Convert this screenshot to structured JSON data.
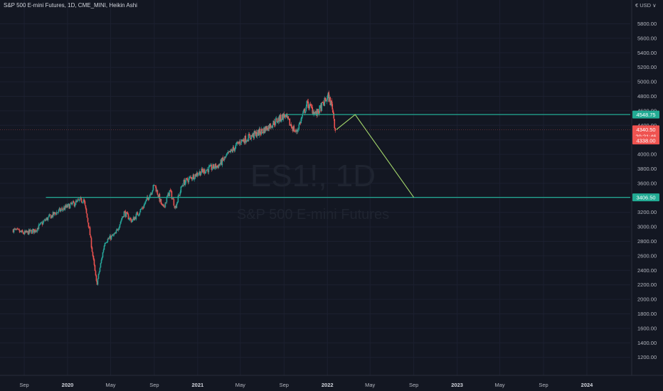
{
  "header": {
    "title": "S&P 500 E-mini Futures, 1D, CME_MINI, Heikin Ashi",
    "currency": "€ USD ∨"
  },
  "watermark": {
    "symbol": "ES1!, 1D",
    "name": "S&P 500 E-mini Futures"
  },
  "colors": {
    "background": "#131722",
    "up": "#26a69a",
    "down": "#ef5350",
    "horizontal_line": "#22ab94",
    "projection": "#a5d86c"
  },
  "chart_data": {
    "type": "candlestick",
    "candle_style": "Heikin Ashi",
    "interval": "1D",
    "ylim": [
      1050,
      6050
    ],
    "y_ticks": [
      1200,
      1400,
      1600,
      1800,
      2000,
      2200,
      2400,
      2600,
      2800,
      3000,
      3200,
      3400,
      3600,
      3800,
      4000,
      4200,
      4400,
      4600,
      4800,
      5000,
      5200,
      5400,
      5600,
      5800
    ],
    "x_ticks": [
      {
        "label": "Sep",
        "date": "2019-09-01",
        "bold": false
      },
      {
        "label": "2020",
        "date": "2020-01-01",
        "bold": true
      },
      {
        "label": "May",
        "date": "2020-05-01",
        "bold": false
      },
      {
        "label": "Sep",
        "date": "2020-09-01",
        "bold": false
      },
      {
        "label": "2021",
        "date": "2021-01-01",
        "bold": true
      },
      {
        "label": "May",
        "date": "2021-05-01",
        "bold": false
      },
      {
        "label": "Sep",
        "date": "2021-09-01",
        "bold": false
      },
      {
        "label": "2022",
        "date": "2022-01-01",
        "bold": true
      },
      {
        "label": "May",
        "date": "2022-05-01",
        "bold": false
      },
      {
        "label": "Sep",
        "date": "2022-09-01",
        "bold": false
      },
      {
        "label": "2023",
        "date": "2023-01-01",
        "bold": true
      },
      {
        "label": "May",
        "date": "2023-05-01",
        "bold": false
      },
      {
        "label": "Sep",
        "date": "2023-09-01",
        "bold": false
      },
      {
        "label": "2024",
        "date": "2024-01-01",
        "bold": true
      }
    ],
    "price_path": [
      {
        "date": "2019-08-01",
        "price": 2960
      },
      {
        "date": "2019-09-01",
        "price": 2910
      },
      {
        "date": "2019-10-01",
        "price": 2950
      },
      {
        "date": "2019-11-01",
        "price": 3100
      },
      {
        "date": "2019-12-01",
        "price": 3200
      },
      {
        "date": "2020-01-01",
        "price": 3280
      },
      {
        "date": "2020-02-15",
        "price": 3380
      },
      {
        "date": "2020-03-01",
        "price": 3000
      },
      {
        "date": "2020-03-23",
        "price": 2200
      },
      {
        "date": "2020-04-15",
        "price": 2800
      },
      {
        "date": "2020-05-15",
        "price": 2900
      },
      {
        "date": "2020-06-08",
        "price": 3200
      },
      {
        "date": "2020-06-30",
        "price": 3080
      },
      {
        "date": "2020-08-01",
        "price": 3280
      },
      {
        "date": "2020-09-02",
        "price": 3580
      },
      {
        "date": "2020-09-25",
        "price": 3250
      },
      {
        "date": "2020-10-15",
        "price": 3500
      },
      {
        "date": "2020-10-30",
        "price": 3270
      },
      {
        "date": "2020-11-20",
        "price": 3600
      },
      {
        "date": "2021-01-01",
        "price": 3740
      },
      {
        "date": "2021-03-01",
        "price": 3850
      },
      {
        "date": "2021-05-01",
        "price": 4180
      },
      {
        "date": "2021-07-01",
        "price": 4320
      },
      {
        "date": "2021-09-02",
        "price": 4540
      },
      {
        "date": "2021-09-20",
        "price": 4400
      },
      {
        "date": "2021-10-05",
        "price": 4300
      },
      {
        "date": "2021-11-05",
        "price": 4700
      },
      {
        "date": "2021-12-01",
        "price": 4550
      },
      {
        "date": "2022-01-03",
        "price": 4800
      },
      {
        "date": "2022-01-15",
        "price": 4650
      },
      {
        "date": "2022-01-24",
        "price": 4300
      }
    ],
    "horizontal_levels": [
      {
        "price": 4548.75,
        "label": "4548.75",
        "start_date": "2021-09-02"
      },
      {
        "price": 3406.5,
        "label": "3406.50",
        "start_date": "2019-11-01"
      }
    ],
    "projection_path": [
      {
        "date": "2022-01-26",
        "price": 4340
      },
      {
        "date": "2022-03-20",
        "price": 4548
      },
      {
        "date": "2022-09-01",
        "price": 3406.5
      }
    ],
    "last_price": {
      "price": 4340.5,
      "label": "4340.50",
      "countdown": "20:21:46"
    },
    "low_tag": {
      "price": 4338.0,
      "label": "4338.00"
    }
  }
}
